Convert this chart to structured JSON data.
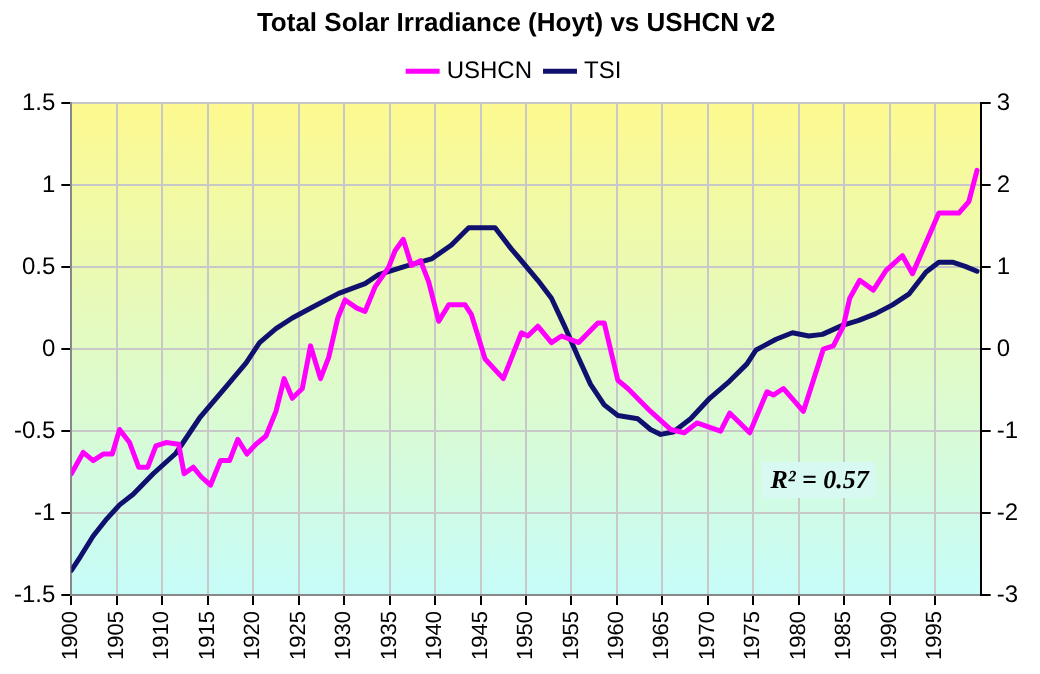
{
  "chart_data": {
    "type": "line",
    "title": "Total Solar Irradiance (Hoyt) vs USHCN v2",
    "xlim": [
      1900,
      2000
    ],
    "xticks": [
      1900,
      1905,
      1910,
      1915,
      1920,
      1925,
      1930,
      1935,
      1940,
      1945,
      1950,
      1955,
      1960,
      1965,
      1970,
      1975,
      1980,
      1985,
      1990,
      1995
    ],
    "ylim": [
      -1.5,
      1.5
    ],
    "yticks": [
      -1.5,
      -1,
      -0.5,
      0,
      0.5,
      1,
      1.5
    ],
    "y2lim": [
      -3,
      3
    ],
    "y2ticks": [
      -3,
      -2,
      -1,
      0,
      1,
      2,
      3
    ],
    "grid": true,
    "legend": "top",
    "marker": "none",
    "line_style": "solid",
    "annotations": [
      "R² = 0.57"
    ],
    "series": [
      {
        "name": "USHCN",
        "color": "#ff00ff",
        "x": [
          1900,
          1901.3,
          1902.4,
          1903.5,
          1904.5,
          1905.3,
          1906.4,
          1907.4,
          1908.4,
          1909.3,
          1910.4,
          1911.8,
          1912.4,
          1913.4,
          1914.3,
          1915.3,
          1916.4,
          1917.4,
          1918.3,
          1919.3,
          1920.3,
          1921.4,
          1922.5,
          1923.4,
          1924.3,
          1925.4,
          1926.3,
          1927.4,
          1928.3,
          1929.3,
          1930.1,
          1931.4,
          1932.3,
          1933.4,
          1934.9,
          1935.6,
          1936.5,
          1937.4,
          1938.4,
          1939.3,
          1940.4,
          1941.5,
          1943.3,
          1944,
          1945.5,
          1947.5,
          1949.5,
          1950.2,
          1951.3,
          1952.8,
          1953.9,
          1955.8,
          1957.9,
          1958.6,
          1960.1,
          1961.2,
          1963.7,
          1965.9,
          1967.4,
          1968.8,
          1971.4,
          1972.4,
          1974.6,
          1976.5,
          1977.2,
          1978.3,
          1980.5,
          1982.7,
          1983.8,
          1984.9,
          1985.6,
          1986.7,
          1988.2,
          1989.6,
          1991.4,
          1992.5,
          1994,
          1995.4,
          1997.6,
          1998.7,
          1999.6
        ],
        "values": [
          -0.76,
          -0.63,
          -0.68,
          -0.64,
          -0.64,
          -0.49,
          -0.57,
          -0.72,
          -0.72,
          -0.59,
          -0.57,
          -0.58,
          -0.76,
          -0.72,
          -0.78,
          -0.83,
          -0.68,
          -0.68,
          -0.55,
          -0.64,
          -0.58,
          -0.53,
          -0.38,
          -0.18,
          -0.3,
          -0.24,
          0.02,
          -0.18,
          -0.05,
          0.19,
          0.3,
          0.25,
          0.23,
          0.38,
          0.5,
          0.6,
          0.67,
          0.51,
          0.54,
          0.41,
          0.17,
          0.27,
          0.27,
          0.21,
          -0.06,
          -0.18,
          0.1,
          0.08,
          0.14,
          0.04,
          0.08,
          0.04,
          0.16,
          0.16,
          -0.19,
          -0.24,
          -0.38,
          -0.49,
          -0.51,
          -0.45,
          -0.5,
          -0.39,
          -0.51,
          -0.26,
          -0.28,
          -0.24,
          -0.38,
          0,
          0.02,
          0.14,
          0.31,
          0.42,
          0.36,
          0.48,
          0.57,
          0.46,
          0.65,
          0.83,
          0.83,
          0.9,
          1.09
        ]
      },
      {
        "name": "TSI",
        "color": "#10106e",
        "axis": "y2",
        "x": [
          1900,
          1901,
          1902.4,
          1903.9,
          1905.3,
          1906.8,
          1909,
          1911.5,
          1914.1,
          1917,
          1919.2,
          1920.7,
          1922.5,
          1924.3,
          1926.5,
          1929.4,
          1932.3,
          1933.8,
          1936.7,
          1939.6,
          1941.8,
          1943.7,
          1946.6,
          1948.4,
          1949.1,
          1951.3,
          1952.8,
          1954.2,
          1955.7,
          1957.1,
          1958.6,
          1960.1,
          1962.3,
          1963.7,
          1964.8,
          1966.2,
          1968.1,
          1970.2,
          1972.4,
          1974.3,
          1975.3,
          1977.5,
          1979.3,
          1981.1,
          1982.6,
          1984.8,
          1986.6,
          1988.4,
          1990.3,
          1992.1,
          1994,
          1995.4,
          1996.9,
          1998.3,
          1999.6
        ],
        "values": [
          -2.7,
          -2.53,
          -2.28,
          -2.07,
          -1.9,
          -1.77,
          -1.52,
          -1.27,
          -0.84,
          -0.46,
          -0.17,
          0.08,
          0.25,
          0.38,
          0.51,
          0.68,
          0.8,
          0.91,
          1.01,
          1.1,
          1.27,
          1.48,
          1.48,
          1.22,
          1.13,
          0.84,
          0.62,
          0.29,
          -0.09,
          -0.43,
          -0.68,
          -0.81,
          -0.85,
          -0.98,
          -1.04,
          -1.01,
          -0.85,
          -0.6,
          -0.39,
          -0.18,
          -0.01,
          0.12,
          0.2,
          0.16,
          0.18,
          0.29,
          0.35,
          0.43,
          0.54,
          0.67,
          0.94,
          1.06,
          1.06,
          1.01,
          0.95
        ]
      }
    ]
  }
}
